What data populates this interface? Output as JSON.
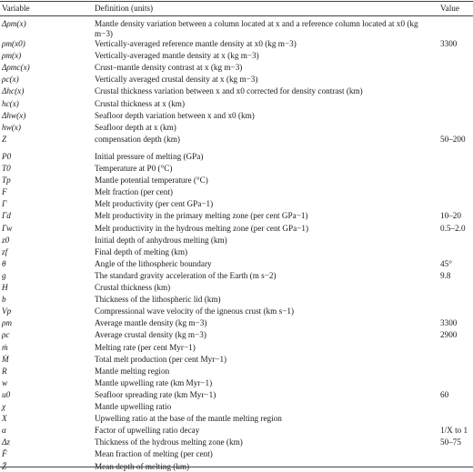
{
  "headers": {
    "variable": "Variable",
    "definition": "Definition (units)",
    "value": "Value"
  },
  "rows": [
    {
      "v": "Δρm(x)",
      "d": "Mantle density variation between a column located at x and a reference column located at x0 (kg m−3)",
      "val": "",
      "tall": true
    },
    {
      "v": "ρm(x0)",
      "d": "Vertically-averaged reference mantle density at x0 (kg m−3)",
      "val": "3300"
    },
    {
      "v": "ρm(x)",
      "d": "Vertically-averaged mantle density at x (kg m−3)",
      "val": ""
    },
    {
      "v": "Δρmc(x)",
      "d": "Crust–mantle density contrast at x (kg m−3)",
      "val": ""
    },
    {
      "v": "ρc(x)",
      "d": "Vertically averaged crustal density at x (kg m−3)",
      "val": ""
    },
    {
      "v": "Δhc(x)",
      "d": "Crustal thickness variation between x and x0 corrected for density contrast (km)",
      "val": ""
    },
    {
      "v": "hc(x)",
      "d": "Crustal thickness at x (km)",
      "val": ""
    },
    {
      "v": "Δhw(x)",
      "d": "Seafloor depth variation between x and x0 (km)",
      "val": ""
    },
    {
      "v": "hw(x)",
      "d": "Seafloor depth at x (km)",
      "val": ""
    },
    {
      "v": "Z",
      "d": "compensation depth (km)",
      "val": "50–200"
    },
    {
      "v": "P0",
      "d": "Initial pressure of melting (GPa)",
      "val": "",
      "gap": true
    },
    {
      "v": "T0",
      "d": "Temperature at P0 (°C)",
      "val": ""
    },
    {
      "v": "Tp",
      "d": "Mantle potential temperature (°C)",
      "val": ""
    },
    {
      "v": "F",
      "d": "Melt fraction (per cent)",
      "val": ""
    },
    {
      "v": "Γ",
      "d": "Melt productivity (per cent GPa−1)",
      "val": ""
    },
    {
      "v": "Γd",
      "d": "Melt productivity in the primary melting zone (per cent GPa−1)",
      "val": "10–20"
    },
    {
      "v": "Γw",
      "d": "Melt productivity in the hydrous melting zone (per cent GPa−1)",
      "val": "0.5–2.0"
    },
    {
      "v": "z0",
      "d": "Initial depth of anhydrous melting (km)",
      "val": ""
    },
    {
      "v": "zf",
      "d": "Final depth of melting (km)",
      "val": ""
    },
    {
      "v": "θ",
      "d": "Angle of the lithospheric boundary",
      "val": "45°"
    },
    {
      "v": "g",
      "d": "The standard gravity acceleration of the Earth (m s−2)",
      "val": "9.8"
    },
    {
      "v": "H",
      "d": "Crustal thickness (km)",
      "val": ""
    },
    {
      "v": "b",
      "d": "Thickness of the lithospheric lid (km)",
      "val": ""
    },
    {
      "v": "Vp",
      "d": "Compressional wave velocity of the igneous crust (km s−1)",
      "val": ""
    },
    {
      "v": "ρm",
      "d": "Average mantle density (kg m−3)",
      "val": "3300"
    },
    {
      "v": "ρc",
      "d": "Average crustal density (kg m−3)",
      "val": "2900"
    },
    {
      "v": "ṁ",
      "d": "Melting rate (per cent Myr−1)",
      "val": ""
    },
    {
      "v": "Ṁ",
      "d": "Total melt production (per cent Myr−1)",
      "val": ""
    },
    {
      "v": "R",
      "d": "Mantle melting region",
      "val": ""
    },
    {
      "v": "w",
      "d": "Mantle upwelling rate (km Myr−1)",
      "val": ""
    },
    {
      "v": "u0",
      "d": "Seafloor spreading rate (km Myr−1)",
      "val": "60"
    },
    {
      "v": "χ",
      "d": "Mantle upwelling ratio",
      "val": ""
    },
    {
      "v": "X",
      "d": "Upwelling ratio at the base of the mantle melting region",
      "val": ""
    },
    {
      "v": "α",
      "d": "Factor of upwelling ratio decay",
      "val": "1/X to 1"
    },
    {
      "v": "Δz",
      "d": "Thickness of the hydrous melting zone (km)",
      "val": "50–75"
    },
    {
      "v": "F̄",
      "d": "Mean fraction of melting (per cent)",
      "val": ""
    },
    {
      "v": "Z̄",
      "d": "Mean depth of melting (km)",
      "val": ""
    }
  ]
}
